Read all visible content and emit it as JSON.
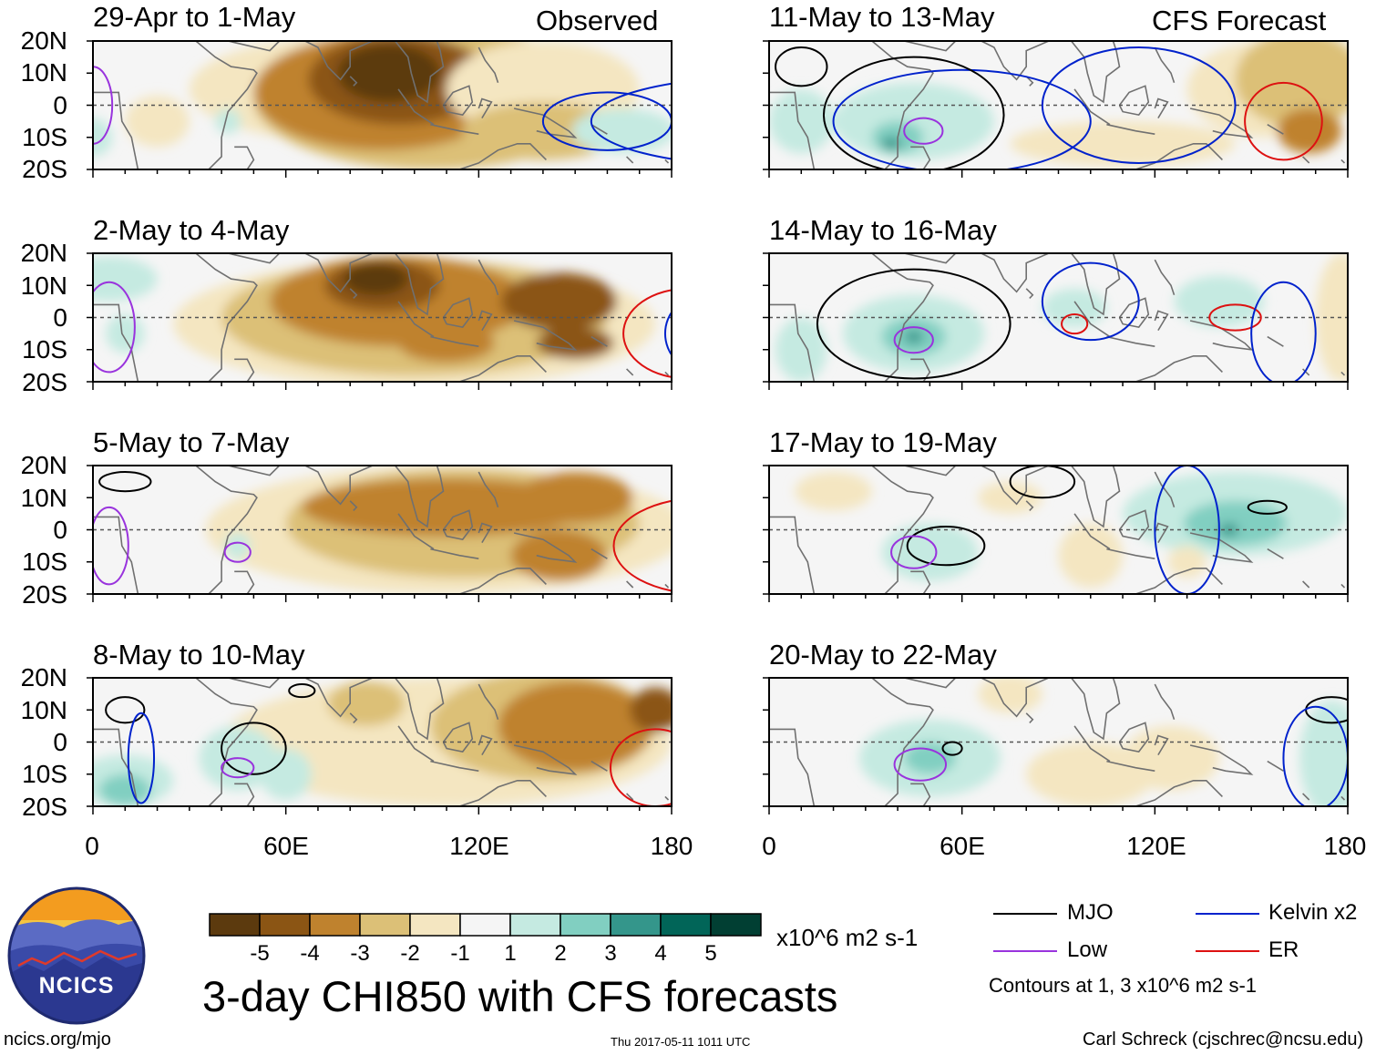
{
  "chart_data": {
    "type": "heatmap",
    "title": "3-day CHI850 with CFS forecasts",
    "colorbar": {
      "levels": [
        "-5",
        "-4",
        "-3",
        "-2",
        "-1",
        "1",
        "2",
        "3",
        "4",
        "5"
      ],
      "colors": [
        "#5c3a0e",
        "#8b5514",
        "#bf822e",
        "#dcc077",
        "#f4e6c1",
        "#f5f5f5",
        "#c5eae1",
        "#81cfc1",
        "#34968b",
        "#016558",
        "#013f33"
      ],
      "units": "x10^6 m2 s-1"
    },
    "x_ticks": [
      "0",
      "60E",
      "120E",
      "180"
    ],
    "y_ticks": [
      "20N",
      "10N",
      "0",
      "10S",
      "20S"
    ],
    "section_labels": {
      "observed": "Observed",
      "forecast": "CFS Forecast"
    },
    "panels": [
      {
        "id": "obs-1",
        "column": "observed",
        "period": "29-Apr to 1-May",
        "anomaly_min": -5,
        "anomaly_max": 1
      },
      {
        "id": "obs-2",
        "column": "observed",
        "period": "2-May to 4-May",
        "anomaly_min": -5,
        "anomaly_max": 1
      },
      {
        "id": "obs-3",
        "column": "observed",
        "period": "5-May to 7-May",
        "anomaly_min": -4,
        "anomaly_max": 1
      },
      {
        "id": "obs-4",
        "column": "observed",
        "period": "8-May to 10-May",
        "anomaly_min": -4,
        "anomaly_max": 3
      },
      {
        "id": "fc-1",
        "column": "forecast",
        "period": "11-May to 13-May",
        "anomaly_min": -3,
        "anomaly_max": 3
      },
      {
        "id": "fc-2",
        "column": "forecast",
        "period": "14-May to 16-May",
        "anomaly_min": -2,
        "anomaly_max": 2
      },
      {
        "id": "fc-3",
        "column": "forecast",
        "period": "17-May to 19-May",
        "anomaly_min": -1,
        "anomaly_max": 3
      },
      {
        "id": "fc-4",
        "column": "forecast",
        "period": "20-May to 22-May",
        "anomaly_min": -1,
        "anomaly_max": 2
      }
    ],
    "legend": {
      "entries": [
        {
          "name": "MJO",
          "color": "#000000"
        },
        {
          "name": "Kelvin x2",
          "color": "#0022cc"
        },
        {
          "name": "Low",
          "color": "#9933dd"
        },
        {
          "name": "ER",
          "color": "#dd1111"
        }
      ],
      "note": "Contours at 1, 3 x10^6 m2 s-1"
    }
  },
  "logo": {
    "text": "NCICS"
  },
  "footer": {
    "site": "ncics.org/mjo",
    "timestamp": "Thu 2017-05-11 1011 UTC",
    "author": "Carl Schreck (cjschrec@ncsu.edu)"
  }
}
